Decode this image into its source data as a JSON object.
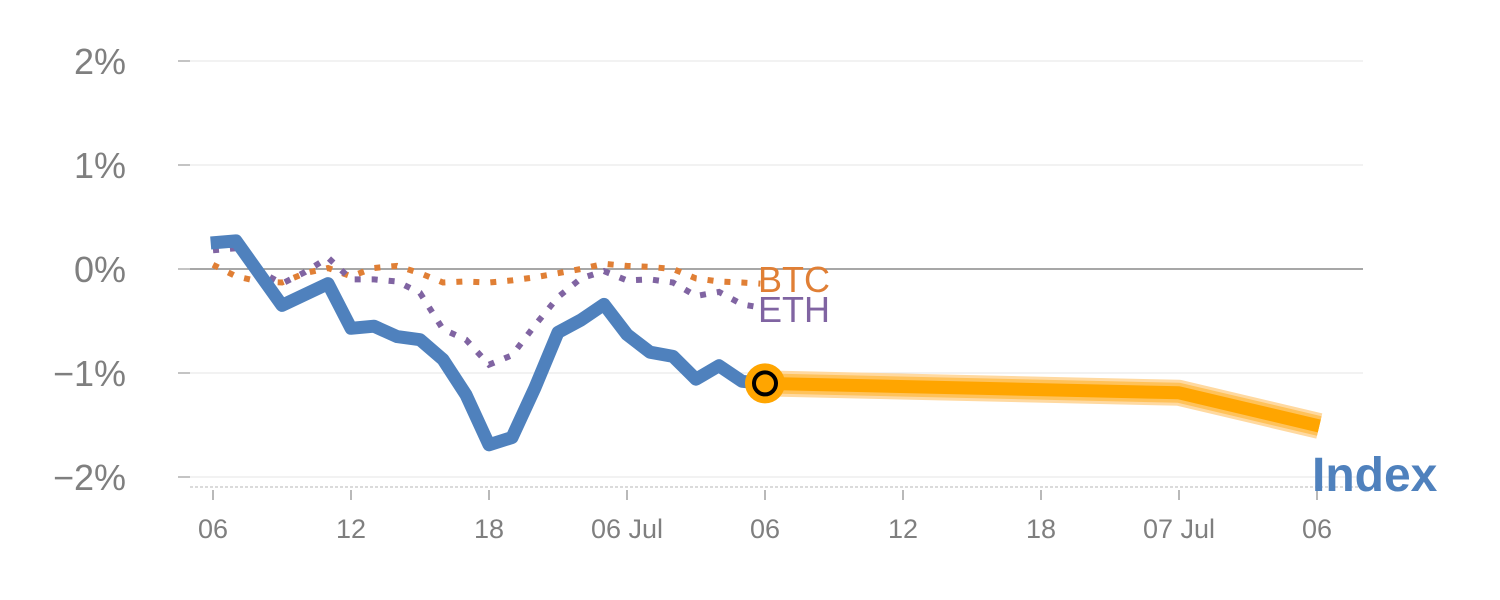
{
  "chart_data": {
    "type": "line",
    "title": "",
    "xlabel": "",
    "ylabel": "",
    "x_unit": "hours since first tick",
    "ylim": [
      -2,
      2
    ],
    "xlim": [
      -1,
      50
    ],
    "y_ticks": [
      {
        "value": 2,
        "label": "2%"
      },
      {
        "value": 1,
        "label": "1%"
      },
      {
        "value": 0,
        "label": "0%"
      },
      {
        "value": -1,
        "label": "−1%"
      },
      {
        "value": -2,
        "label": "−2%"
      }
    ],
    "x_ticks": [
      {
        "value": 0,
        "label": "06"
      },
      {
        "value": 6,
        "label": "12"
      },
      {
        "value": 12,
        "label": "18"
      },
      {
        "value": 18,
        "label": "06 Jul"
      },
      {
        "value": 24,
        "label": "06"
      },
      {
        "value": 30,
        "label": "12"
      },
      {
        "value": 36,
        "label": "18"
      },
      {
        "value": 42,
        "label": "07 Jul"
      },
      {
        "value": 48,
        "label": "06"
      }
    ],
    "series": [
      {
        "name": "BTC",
        "color": "#e07f35",
        "style": "dotted",
        "label": "BTC",
        "x": [
          0,
          1,
          2,
          3,
          4,
          5,
          6,
          7,
          8,
          9,
          10,
          11,
          12,
          13,
          14,
          15,
          16,
          17,
          18,
          19,
          20,
          21,
          22,
          23,
          23.8
        ],
        "y": [
          0.04,
          -0.07,
          -0.12,
          -0.13,
          -0.04,
          0.01,
          -0.07,
          0.01,
          0.03,
          -0.04,
          -0.13,
          -0.12,
          -0.13,
          -0.11,
          -0.08,
          -0.04,
          0,
          0.05,
          0.03,
          0.02,
          0,
          -0.09,
          -0.12,
          -0.13,
          -0.14
        ]
      },
      {
        "name": "ETH",
        "color": "#8064a2",
        "style": "dotted",
        "label": "ETH",
        "x": [
          0,
          1,
          2,
          3,
          4,
          5,
          6,
          7,
          8,
          9,
          10,
          11,
          12,
          13,
          14,
          15,
          16,
          17,
          18,
          19,
          20,
          21,
          22,
          23,
          23.8
        ],
        "y": [
          0.18,
          0.2,
          -0.02,
          -0.14,
          -0.03,
          0.11,
          -0.1,
          -0.1,
          -0.12,
          -0.23,
          -0.58,
          -0.68,
          -0.92,
          -0.83,
          -0.54,
          -0.27,
          -0.09,
          -0.02,
          -0.11,
          -0.1,
          -0.13,
          -0.26,
          -0.22,
          -0.34,
          -0.37
        ]
      },
      {
        "name": "Index",
        "color": "#4f81bd",
        "style": "solid",
        "label": "Index",
        "x": [
          -0.1,
          1,
          3,
          5,
          6,
          7,
          8,
          9,
          10,
          11,
          12,
          13,
          14,
          15,
          16,
          17,
          18,
          19,
          20,
          21,
          22,
          23,
          24
        ],
        "y": [
          0.25,
          0.27,
          -0.35,
          -0.14,
          -0.57,
          -0.55,
          -0.65,
          -0.68,
          -0.87,
          -1.21,
          -1.69,
          -1.62,
          -1.14,
          -0.61,
          -0.49,
          -0.34,
          -0.63,
          -0.8,
          -0.84,
          -1.06,
          -0.93,
          -1.08,
          -1.1
        ]
      },
      {
        "name": "Index forecast",
        "color": "#ffa500",
        "style": "band",
        "x": [
          24,
          42,
          48.1
        ],
        "y": [
          -1.1,
          -1.19,
          -1.51
        ]
      }
    ],
    "marker": {
      "x": 24,
      "y": -1.1,
      "color": "#ffa500"
    },
    "grid": true,
    "legend": "inline-labels"
  }
}
